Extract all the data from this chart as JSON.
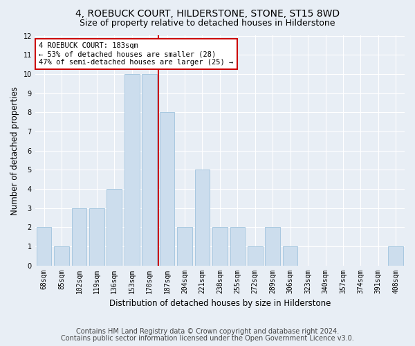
{
  "title": "4, ROEBUCK COURT, HILDERSTONE, STONE, ST15 8WD",
  "subtitle": "Size of property relative to detached houses in Hilderstone",
  "xlabel": "Distribution of detached houses by size in Hilderstone",
  "ylabel": "Number of detached properties",
  "categories": [
    "68sqm",
    "85sqm",
    "102sqm",
    "119sqm",
    "136sqm",
    "153sqm",
    "170sqm",
    "187sqm",
    "204sqm",
    "221sqm",
    "238sqm",
    "255sqm",
    "272sqm",
    "289sqm",
    "306sqm",
    "323sqm",
    "340sqm",
    "357sqm",
    "374sqm",
    "391sqm",
    "408sqm"
  ],
  "values": [
    2,
    1,
    3,
    3,
    4,
    10,
    10,
    8,
    2,
    5,
    2,
    2,
    1,
    2,
    1,
    0,
    0,
    0,
    0,
    0,
    1
  ],
  "bar_color": "#ccdded",
  "bar_edge_color": "#a8c8e0",
  "highlight_line_color": "#cc0000",
  "annotation_line1": "4 ROEBUCK COURT: 183sqm",
  "annotation_line2": "← 53% of detached houses are smaller (28)",
  "annotation_line3": "47% of semi-detached houses are larger (25) →",
  "annotation_box_color": "#ffffff",
  "annotation_box_edge_color": "#cc0000",
  "ylim": [
    0,
    12
  ],
  "yticks": [
    0,
    1,
    2,
    3,
    4,
    5,
    6,
    7,
    8,
    9,
    10,
    11,
    12
  ],
  "footer_line1": "Contains HM Land Registry data © Crown copyright and database right 2024.",
  "footer_line2": "Contains public sector information licensed under the Open Government Licence v3.0.",
  "bg_color": "#e8eef5",
  "plot_bg_color": "#e8eef5",
  "title_fontsize": 10,
  "subtitle_fontsize": 9,
  "axis_label_fontsize": 8.5,
  "tick_fontsize": 7,
  "annotation_fontsize": 7.5,
  "footer_fontsize": 7
}
